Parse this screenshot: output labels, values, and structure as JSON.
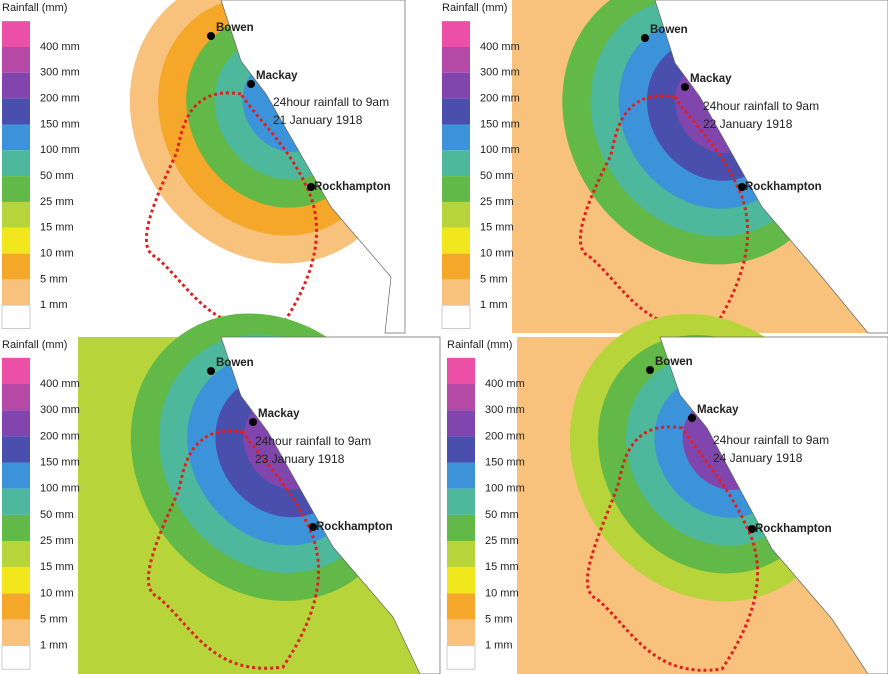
{
  "panels": [
    {
      "legend_title": "Rainfall (mm)",
      "legend_labels": [
        "400 mm",
        "300 mm",
        "200 mm",
        "150 mm",
        "100 mm",
        "50 mm",
        "25 mm",
        "15 mm",
        "10 mm",
        "5 mm",
        "1 mm"
      ],
      "cities": [
        "Bowen",
        "Mackay",
        "Rockhampton"
      ],
      "caption": [
        "24hour rainfall to 9am",
        "21 January 1918"
      ]
    },
    {
      "legend_title": "Rainfall (mm)",
      "legend_labels": [
        "400 mm",
        "300 mm",
        "200 mm",
        "150 mm",
        "100 mm",
        "50 mm",
        "25 mm",
        "15 mm",
        "10 mm",
        "5 mm",
        "1 mm"
      ],
      "cities": [
        "Bowen",
        "Mackay",
        "Rockhampton"
      ],
      "caption": [
        "24hour rainfall to 9am",
        "22 January 1918"
      ]
    },
    {
      "legend_title": "Rainfall (mm)",
      "legend_labels": [
        "400 mm",
        "300 mm",
        "200 mm",
        "150 mm",
        "100 mm",
        "50 mm",
        "25 mm",
        "15 mm",
        "10 mm",
        "5 mm",
        "1 mm"
      ],
      "cities": [
        "Bowen",
        "Mackay",
        "Rockhampton"
      ],
      "caption": [
        "24hour rainfall to 9am",
        "23 January 1918"
      ]
    },
    {
      "legend_title": "Rainfall (mm)",
      "legend_labels": [
        "400 mm",
        "300 mm",
        "200 mm",
        "150 mm",
        "100 mm",
        "50 mm",
        "25 mm",
        "15 mm",
        "10 mm",
        "5 mm",
        "1 mm"
      ],
      "cities": [
        "Bowen",
        "Mackay",
        "Rockhampton"
      ],
      "caption": [
        "24hour rainfall to 9am",
        "24 January 1918"
      ]
    }
  ]
}
